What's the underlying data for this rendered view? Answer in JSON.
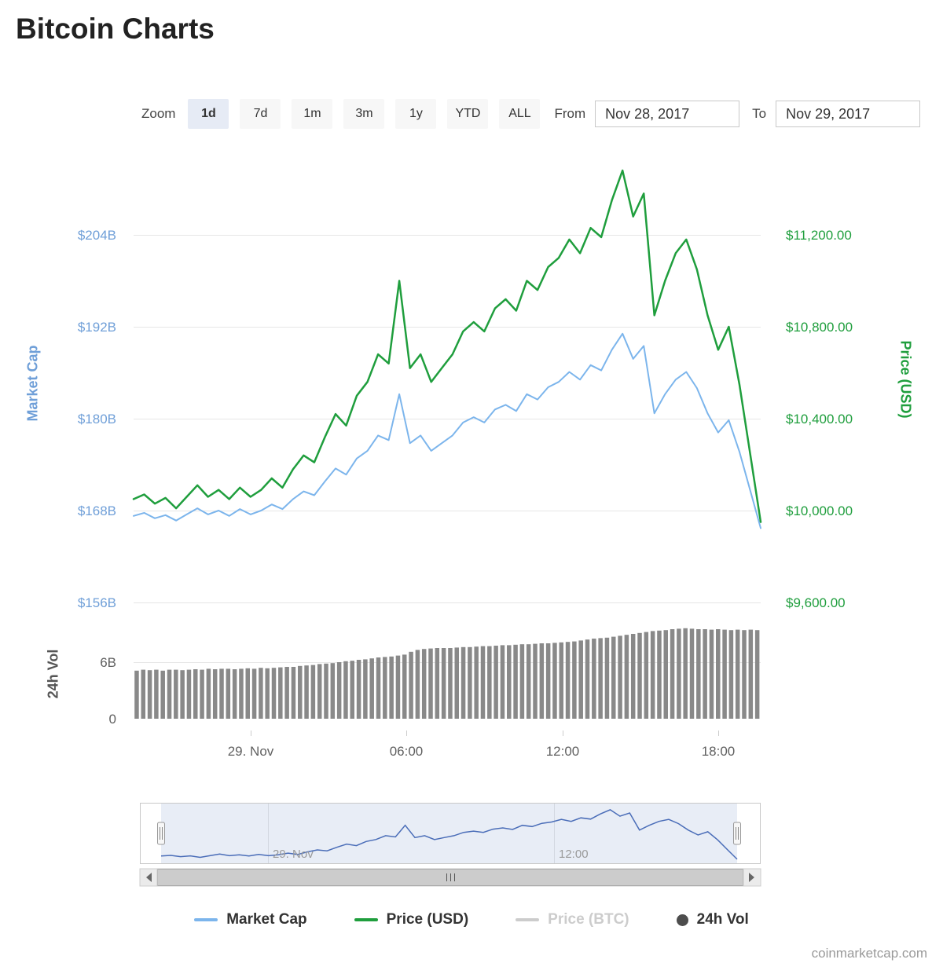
{
  "page": {
    "title": "Bitcoin Charts",
    "watermark": "coinmarketcap.com"
  },
  "toolbar": {
    "zoom_label": "Zoom",
    "buttons": [
      {
        "label": "1d",
        "selected": true
      },
      {
        "label": "7d",
        "selected": false
      },
      {
        "label": "1m",
        "selected": false
      },
      {
        "label": "3m",
        "selected": false
      },
      {
        "label": "1y",
        "selected": false
      },
      {
        "label": "YTD",
        "selected": false
      },
      {
        "label": "ALL",
        "selected": false
      }
    ],
    "from_label": "From",
    "from_value": "Nov 28, 2017",
    "to_label": "To",
    "to_value": "Nov 29, 2017"
  },
  "chart_data": {
    "type": "line",
    "title": "Bitcoin Charts",
    "x_axis": {
      "labels": [
        "29. Nov",
        "06:00",
        "12:00",
        "18:00"
      ],
      "range_start": "Nov 28, 2017 ~19:30",
      "range_end": "Nov 29, 2017 ~19:40",
      "note": "series values are evenly spaced samples across the range"
    },
    "left_axis": {
      "title": "Market Cap",
      "color": "#6f9fd8",
      "unit": "USD billions",
      "ticks": [
        {
          "label": "$204B",
          "value": 204
        },
        {
          "label": "$192B",
          "value": 192
        },
        {
          "label": "$180B",
          "value": 180
        },
        {
          "label": "$168B",
          "value": 168
        },
        {
          "label": "$156B",
          "value": 156
        }
      ]
    },
    "right_axis": {
      "title": "Price (USD)",
      "color": "#1f9e3d",
      "ticks": [
        {
          "label": "$11,200.00",
          "value": 11200
        },
        {
          "label": "$10,800.00",
          "value": 10800
        },
        {
          "label": "$10,400.00",
          "value": 10400
        },
        {
          "label": "$10,000.00",
          "value": 10000
        },
        {
          "label": "$9,600.00",
          "value": 9600
        }
      ]
    },
    "volume_axis": {
      "title": "24h Vol",
      "color": "#555555",
      "unit": "USD billions",
      "ticks": [
        {
          "label": "6B",
          "value": 6
        },
        {
          "label": "0",
          "value": 0
        }
      ]
    },
    "series": [
      {
        "name": "Market Cap",
        "type": "line",
        "axis": "left",
        "color": "#7cb5ec",
        "values": [
          167.3,
          167.7,
          167.0,
          167.4,
          166.7,
          167.5,
          168.3,
          167.5,
          168.0,
          167.3,
          168.2,
          167.5,
          168.0,
          168.8,
          168.2,
          169.5,
          170.5,
          170.0,
          171.8,
          173.5,
          172.7,
          174.8,
          175.8,
          177.8,
          177.2,
          183.2,
          176.8,
          177.8,
          175.8,
          176.8,
          177.8,
          179.5,
          180.2,
          179.5,
          181.2,
          181.8,
          181.0,
          183.2,
          182.5,
          184.1,
          184.8,
          186.1,
          185.1,
          187.0,
          186.3,
          189.0,
          191.1,
          187.8,
          189.5,
          180.7,
          183.2,
          185.1,
          186.1,
          184.0,
          180.7,
          178.2,
          179.8,
          175.7,
          170.7,
          165.7
        ]
      },
      {
        "name": "Price (USD)",
        "type": "line",
        "axis": "right",
        "color": "#1f9e3d",
        "values": [
          10050,
          10070,
          10030,
          10055,
          10010,
          10060,
          10110,
          10060,
          10090,
          10050,
          10100,
          10060,
          10090,
          10140,
          10100,
          10180,
          10240,
          10210,
          10320,
          10420,
          10370,
          10500,
          10560,
          10680,
          10640,
          11000,
          10620,
          10680,
          10560,
          10620,
          10680,
          10780,
          10820,
          10780,
          10880,
          10920,
          10870,
          11000,
          10960,
          11060,
          11100,
          11180,
          11120,
          11230,
          11190,
          11350,
          11480,
          11280,
          11380,
          10850,
          11000,
          11120,
          11180,
          11050,
          10850,
          10700,
          10800,
          10550,
          10250,
          9950
        ]
      },
      {
        "name": "Price (BTC)",
        "type": "line",
        "axis": "hidden",
        "color": "#cccccc",
        "values": []
      },
      {
        "name": "24h Vol",
        "type": "bar",
        "axis": "volume",
        "color": "#898989",
        "values": [
          5.1,
          5.2,
          5.15,
          5.2,
          5.1,
          5.2,
          5.2,
          5.15,
          5.2,
          5.25,
          5.2,
          5.3,
          5.25,
          5.3,
          5.3,
          5.25,
          5.3,
          5.35,
          5.3,
          5.4,
          5.35,
          5.4,
          5.45,
          5.5,
          5.5,
          5.6,
          5.65,
          5.7,
          5.8,
          5.85,
          5.9,
          6.0,
          6.1,
          6.15,
          6.25,
          6.3,
          6.4,
          6.5,
          6.55,
          6.6,
          6.7,
          6.8,
          7.1,
          7.3,
          7.4,
          7.45,
          7.5,
          7.5,
          7.5,
          7.55,
          7.6,
          7.6,
          7.65,
          7.7,
          7.7,
          7.75,
          7.8,
          7.8,
          7.85,
          7.9,
          7.9,
          7.95,
          8.0,
          8.0,
          8.05,
          8.1,
          8.15,
          8.2,
          8.3,
          8.4,
          8.5,
          8.55,
          8.6,
          8.7,
          8.8,
          8.9,
          9.0,
          9.1,
          9.2,
          9.3,
          9.35,
          9.4,
          9.5,
          9.55,
          9.6,
          9.55,
          9.5,
          9.5,
          9.45,
          9.5,
          9.45,
          9.4,
          9.45,
          9.4,
          9.45,
          9.4
        ]
      }
    ]
  },
  "navigator": {
    "labels": [
      "29. Nov",
      "12:00"
    ],
    "line_color": "#4a6db8",
    "mask_color": "rgba(102,133,194,0.15)"
  },
  "scrollbar": {
    "grip": "|||"
  },
  "legend": [
    {
      "label": "Market Cap",
      "color": "#7cb5ec",
      "marker": "line",
      "enabled": true
    },
    {
      "label": "Price (USD)",
      "color": "#1f9e3d",
      "marker": "line",
      "enabled": true
    },
    {
      "label": "Price (BTC)",
      "color": "#cccccc",
      "marker": "line",
      "enabled": false
    },
    {
      "label": "24h Vol",
      "color": "#4d4d4d",
      "marker": "circle",
      "enabled": true
    }
  ]
}
